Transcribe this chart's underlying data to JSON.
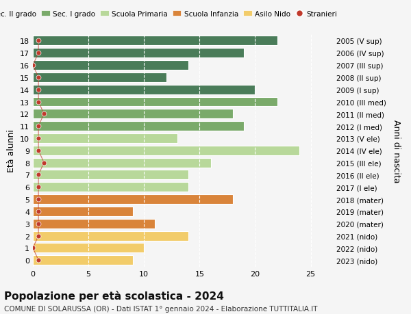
{
  "ages": [
    18,
    17,
    16,
    15,
    14,
    13,
    12,
    11,
    10,
    9,
    8,
    7,
    6,
    5,
    4,
    3,
    2,
    1,
    0
  ],
  "right_labels": [
    "2005 (V sup)",
    "2006 (IV sup)",
    "2007 (III sup)",
    "2008 (II sup)",
    "2009 (I sup)",
    "2010 (III med)",
    "2011 (II med)",
    "2012 (I med)",
    "2013 (V ele)",
    "2014 (IV ele)",
    "2015 (III ele)",
    "2016 (II ele)",
    "2017 (I ele)",
    "2018 (mater)",
    "2019 (mater)",
    "2020 (mater)",
    "2021 (nido)",
    "2022 (nido)",
    "2023 (nido)"
  ],
  "bar_values": [
    22,
    19,
    14,
    12,
    20,
    22,
    18,
    19,
    13,
    24,
    16,
    14,
    14,
    18,
    9,
    11,
    14,
    10,
    9
  ],
  "bar_colors": [
    "#4a7c59",
    "#4a7c59",
    "#4a7c59",
    "#4a7c59",
    "#4a7c59",
    "#7aaa6a",
    "#7aaa6a",
    "#7aaa6a",
    "#b8d89a",
    "#b8d89a",
    "#b8d89a",
    "#b8d89a",
    "#b8d89a",
    "#d9843a",
    "#d9843a",
    "#d9843a",
    "#f2cc6a",
    "#f2cc6a",
    "#f2cc6a"
  ],
  "stranieri_x": [
    0.5,
    0.5,
    0,
    0.5,
    0.5,
    0.5,
    1.0,
    0.5,
    0.5,
    0.5,
    1.0,
    0.5,
    0.5,
    0.5,
    0.5,
    0.5,
    0.5,
    0,
    0.5
  ],
  "stranieri_color": "#c0392b",
  "legend_items": [
    {
      "label": "Sec. II grado",
      "color": "#4a7c59"
    },
    {
      "label": "Sec. I grado",
      "color": "#7aaa6a"
    },
    {
      "label": "Scuola Primaria",
      "color": "#b8d89a"
    },
    {
      "label": "Scuola Infanzia",
      "color": "#d9843a"
    },
    {
      "label": "Asilo Nido",
      "color": "#f2cc6a"
    },
    {
      "label": "Stranieri",
      "color": "#c0392b"
    }
  ],
  "ylabel_left": "Età alunni",
  "ylabel_right": "Anni di nascita",
  "xlim": [
    0,
    27
  ],
  "xticks": [
    0,
    5,
    10,
    15,
    20,
    25
  ],
  "title": "Popolazione per età scolastica - 2024",
  "subtitle": "COMUNE DI SOLARUSSA (OR) - Dati ISTAT 1° gennaio 2024 - Elaborazione TUTTITALIA.IT",
  "background_color": "#f5f5f5",
  "bar_height": 0.78
}
